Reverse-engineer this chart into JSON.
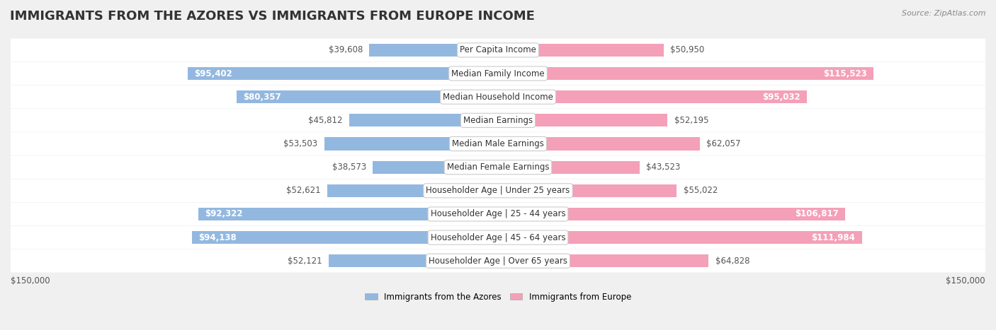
{
  "title": "IMMIGRANTS FROM THE AZORES VS IMMIGRANTS FROM EUROPE INCOME",
  "source": "Source: ZipAtlas.com",
  "categories": [
    "Per Capita Income",
    "Median Family Income",
    "Median Household Income",
    "Median Earnings",
    "Median Male Earnings",
    "Median Female Earnings",
    "Householder Age | Under 25 years",
    "Householder Age | 25 - 44 years",
    "Householder Age | 45 - 64 years",
    "Householder Age | Over 65 years"
  ],
  "azores_values": [
    39608,
    95402,
    80357,
    45812,
    53503,
    38573,
    52621,
    92322,
    94138,
    52121
  ],
  "europe_values": [
    50950,
    115523,
    95032,
    52195,
    62057,
    43523,
    55022,
    106817,
    111984,
    64828
  ],
  "azores_labels": [
    "$39,608",
    "$95,402",
    "$80,357",
    "$45,812",
    "$53,503",
    "$38,573",
    "$52,621",
    "$92,322",
    "$94,138",
    "$52,121"
  ],
  "europe_labels": [
    "$50,950",
    "$115,523",
    "$95,032",
    "$52,195",
    "$62,057",
    "$43,523",
    "$55,022",
    "$106,817",
    "$111,984",
    "$64,828"
  ],
  "max_value": 150000,
  "azores_color": "#93b8e0",
  "azores_color_dark": "#6699cc",
  "europe_color": "#f4a0b8",
  "europe_color_dark": "#e87095",
  "background_color": "#f0f0f0",
  "row_bg_color": "#f8f8f8",
  "legend_azores": "Immigrants from the Azores",
  "legend_europe": "Immigrants from Europe",
  "title_fontsize": 13,
  "label_fontsize": 8.5,
  "category_fontsize": 8.5,
  "axis_label_fontsize": 8.5
}
